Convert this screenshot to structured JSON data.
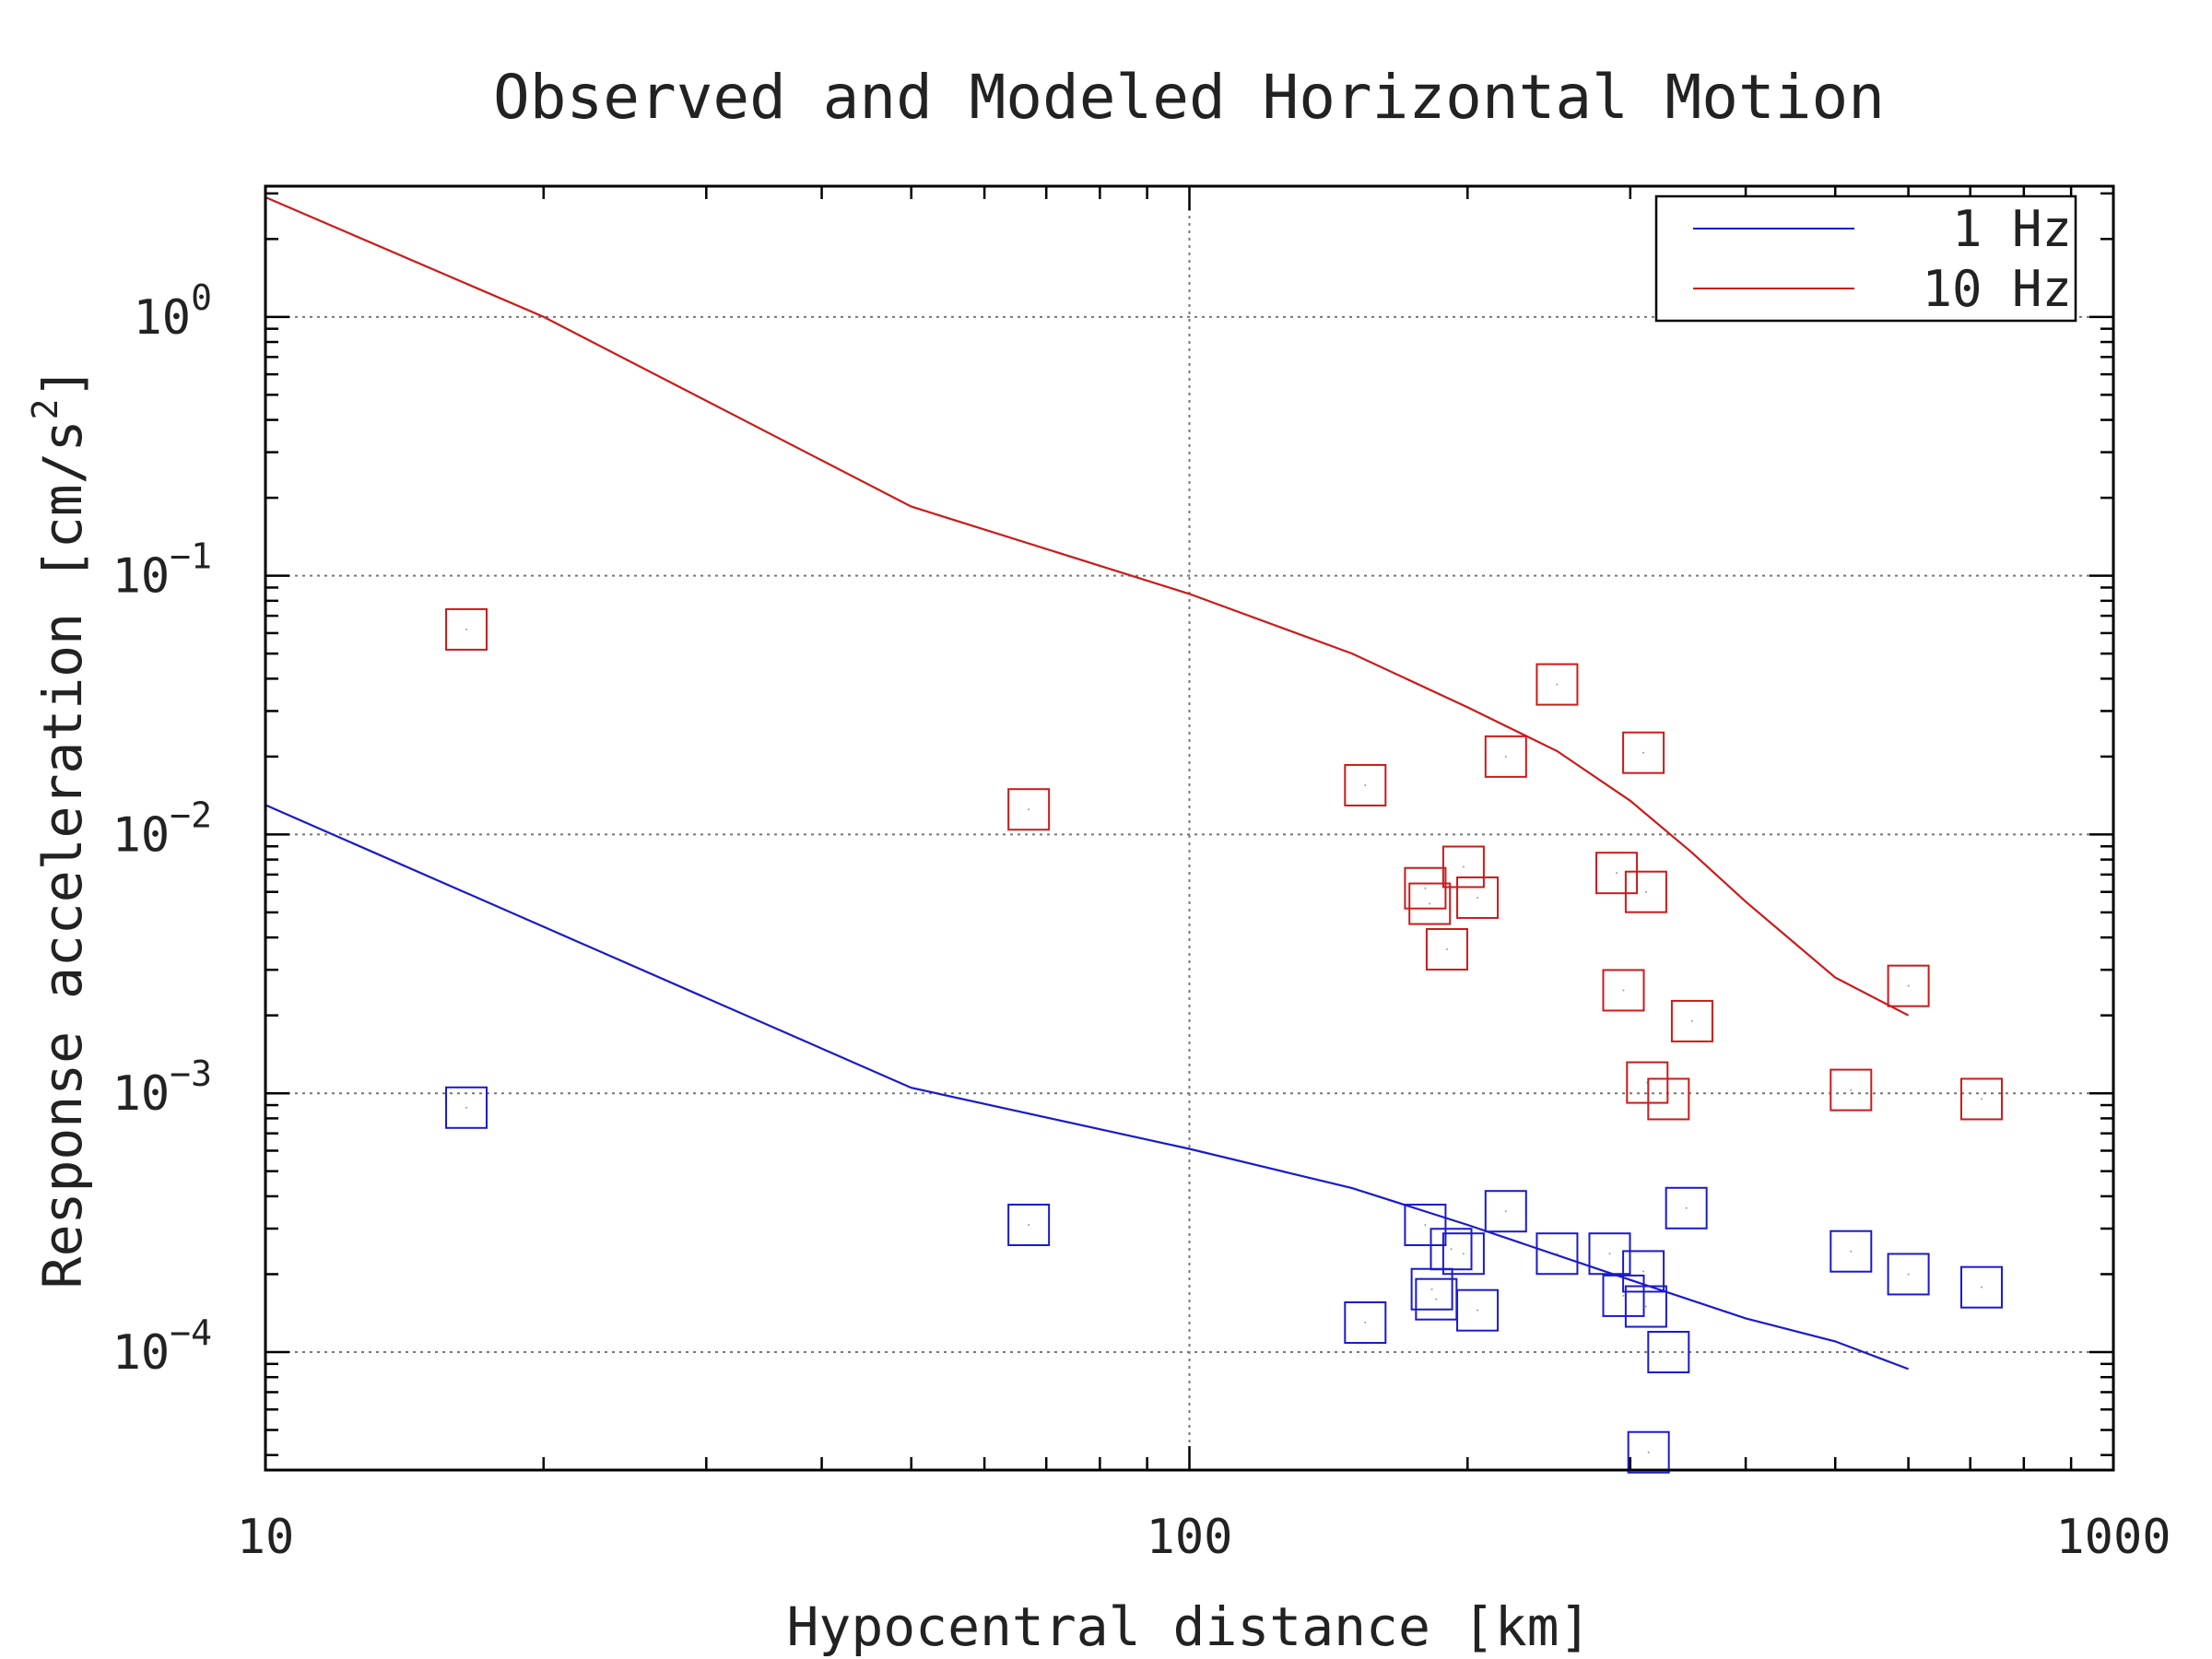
{
  "chart_data": {
    "type": "scatter",
    "title": "Observed and Modeled Horizontal Motion",
    "xlabel": "Hypocentral distance [km]",
    "ylabel": "Response acceleration [cm/s",
    "ylabel_superscript": "2",
    "ylabel_suffix": "]",
    "x_scale": "log",
    "y_scale": "log",
    "xlim": [
      10,
      1000
    ],
    "ylim": [
      3.5e-05,
      3.2
    ],
    "x_ticks": [
      {
        "value": 10,
        "label": "10"
      },
      {
        "value": 100,
        "label": "100"
      },
      {
        "value": 1000,
        "label": "1000"
      }
    ],
    "y_ticks": [
      {
        "value": 0.0001,
        "base": "10",
        "exp": "−4"
      },
      {
        "value": 0.001,
        "base": "10",
        "exp": "−3"
      },
      {
        "value": 0.01,
        "base": "10",
        "exp": "−2"
      },
      {
        "value": 0.1,
        "base": "10",
        "exp": "−1"
      },
      {
        "value": 1,
        "base": "10",
        "exp": "0"
      }
    ],
    "grid": true,
    "legend_position": "top-right",
    "series": [
      {
        "name": "1 Hz",
        "kind": "line",
        "color": "#1a1acc",
        "x": [
          10,
          50,
          100,
          150,
          200,
          300,
          400,
          500,
          600
        ],
        "y": [
          0.013,
          0.00105,
          0.00061,
          0.00043,
          0.00031,
          0.00019,
          0.000135,
          0.00011,
          8.6e-05
        ]
      },
      {
        "name": "10 Hz",
        "kind": "line",
        "color": "#cc1a1a",
        "x": [
          10,
          20,
          50,
          100,
          150,
          200,
          250,
          300,
          350,
          400,
          500,
          600
        ],
        "y": [
          2.9,
          1.0,
          0.185,
          0.085,
          0.05,
          0.031,
          0.021,
          0.0135,
          0.0085,
          0.0055,
          0.0028,
          0.002
        ]
      },
      {
        "name": "",
        "kind": "markers",
        "marker": "square",
        "color": "#1a1acc",
        "x": [
          16.5,
          67,
          155,
          180,
          183,
          185,
          192,
          198,
          205,
          220,
          250,
          285,
          295,
          310,
          312,
          314,
          330,
          345,
          520,
          600,
          720
        ],
        "y": [
          0.00088,
          0.00031,
          0.00013,
          0.00031,
          0.000175,
          0.00016,
          0.00025,
          0.00024,
          0.000145,
          0.00035,
          0.00024,
          0.00024,
          0.000165,
          0.000205,
          0.00015,
          4.1e-05,
          0.0001,
          0.00036,
          0.000245,
          0.0002,
          0.000178
        ]
      },
      {
        "name": "",
        "kind": "markers",
        "marker": "square",
        "color": "#cc1a1a",
        "x": [
          16.5,
          67,
          155,
          180,
          182,
          190,
          198,
          205,
          220,
          250,
          290,
          295,
          310,
          312,
          313,
          330,
          350,
          520,
          600,
          720
        ],
        "y": [
          0.062,
          0.0125,
          0.0155,
          0.0062,
          0.0054,
          0.0036,
          0.0075,
          0.0057,
          0.02,
          0.038,
          0.0071,
          0.0025,
          0.0207,
          0.006,
          0.0011,
          0.00095,
          0.0019,
          0.00103,
          0.0026,
          0.00095
        ]
      }
    ]
  }
}
